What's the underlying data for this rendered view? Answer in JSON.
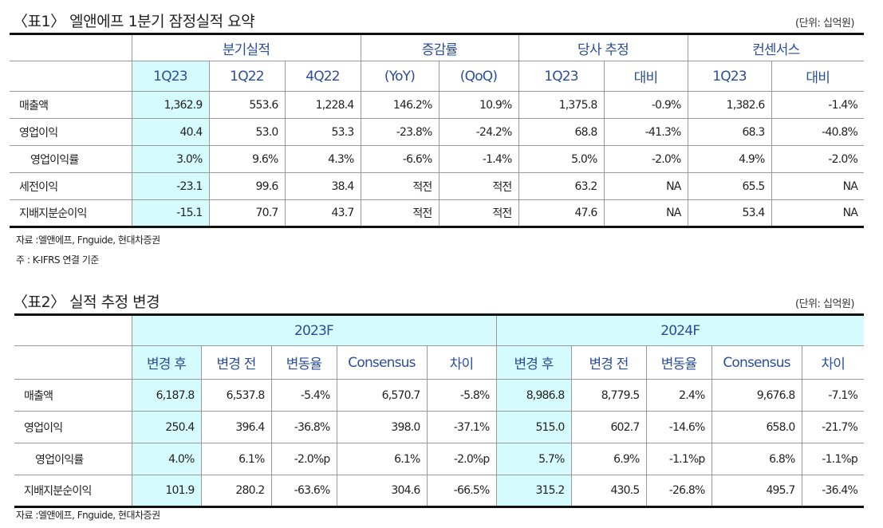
{
  "table1": {
    "title": "〈표1〉 엘앤에프 1분기 잠정실적 요약",
    "unit": "(단위: 십억원)",
    "groups": [
      "분기실적",
      "증감률",
      "당사 추정",
      "컨센서스"
    ],
    "columns": [
      "1Q23",
      "1Q22",
      "4Q22",
      "(YoY)",
      "(QoQ)",
      "1Q23",
      "대비",
      "1Q23",
      "대비"
    ],
    "rows": [
      {
        "label": "매출액",
        "values": [
          "1,362.9",
          "553.6",
          "1,228.4",
          "146.2%",
          "10.9%",
          "1,375.8",
          "-0.9%",
          "1,382.6",
          "-1.4%"
        ]
      },
      {
        "label": "영업이익",
        "values": [
          "40.4",
          "53.0",
          "53.3",
          "-23.8%",
          "-24.2%",
          "68.8",
          "-41.3%",
          "68.3",
          "-40.8%"
        ]
      },
      {
        "label": "영업이익률",
        "values": [
          "3.0%",
          "9.6%",
          "4.3%",
          "-6.6%",
          "-1.4%",
          "5.0%",
          "-2.0%",
          "4.9%",
          "-2.0%"
        ]
      },
      {
        "label": "세전이익",
        "values": [
          "-23.1",
          "99.6",
          "38.4",
          "적전",
          "적전",
          "63.2",
          "NA",
          "65.5",
          "NA"
        ]
      },
      {
        "label": "지배지분순이익",
        "values": [
          "-15.1",
          "70.7",
          "43.7",
          "적전",
          "적전",
          "47.6",
          "NA",
          "53.4",
          "NA"
        ]
      }
    ],
    "source": "자료 :엘앤에프, Fnguide, 현대차증권",
    "note": "주 : K-IFRS 연결 기준"
  },
  "table2": {
    "title": "〈표2〉 실적 추정 변경",
    "unit": "(단위: 십억원)",
    "groups": [
      "2023F",
      "2024F"
    ],
    "columns": [
      "변경 후",
      "변경 전",
      "변동율",
      "Consensus",
      "차이",
      "변경 후",
      "변경 전",
      "변동율",
      "Consensus",
      "차이"
    ],
    "rows": [
      {
        "label": "매출액",
        "values": [
          "6,187.8",
          "6,537.8",
          "-5.4%",
          "6,570.7",
          "-5.8%",
          "8,986.8",
          "8,779.5",
          "2.4%",
          "9,676.8",
          "-7.1%"
        ]
      },
      {
        "label": "영업이익",
        "values": [
          "250.4",
          "396.4",
          "-36.8%",
          "398.0",
          "-37.1%",
          "515.0",
          "602.7",
          "-14.6%",
          "658.0",
          "-21.7%"
        ]
      },
      {
        "label": "영업이익률",
        "values": [
          "4.0%",
          "6.1%",
          "-2.0%p",
          "6.1%",
          "-2.0%p",
          "5.7%",
          "6.9%",
          "-1.1%p",
          "6.8%",
          "-1.1%p"
        ]
      },
      {
        "label": "지배지분순이익",
        "values": [
          "101.9",
          "280.2",
          "-63.6%",
          "304.6",
          "-66.5%",
          "315.2",
          "430.5",
          "-26.8%",
          "495.7",
          "-36.4%"
        ]
      }
    ],
    "source": "자료 :엘앤에프, Fnguide, 현대차증권"
  }
}
